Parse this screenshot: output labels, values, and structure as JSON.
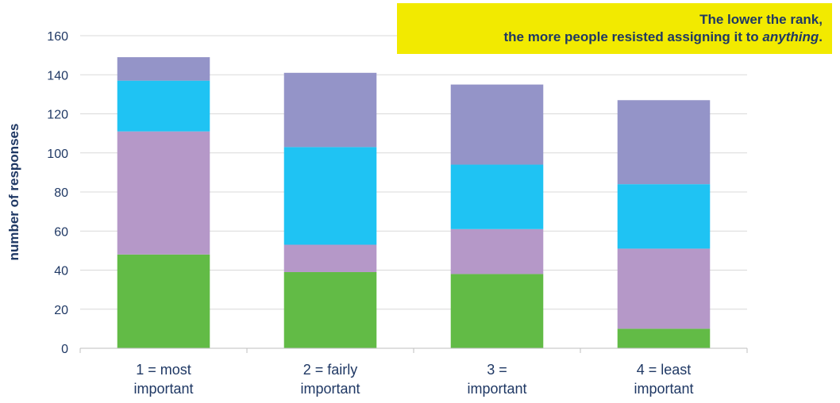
{
  "callout": {
    "line1": "The lower the rank,",
    "line2_prefix": "the more people resisted assigning it to ",
    "line2_emph": "anything",
    "line2_suffix": "."
  },
  "colors": {
    "green": "#62bb46",
    "mauve": "#b598c8",
    "cyan": "#1fc3f3",
    "lavender": "#9494c8",
    "axis_text": "#1f3864",
    "grid": "#d9d9d9"
  },
  "chart_data": {
    "type": "bar",
    "stacked": true,
    "categories": [
      [
        "1 = most",
        "important"
      ],
      [
        "2 = fairly",
        "important"
      ],
      [
        "3 =",
        "important"
      ],
      [
        "4 = least",
        "important"
      ]
    ],
    "series": [
      {
        "color": "#62bb46",
        "values": [
          48,
          39,
          38,
          10
        ]
      },
      {
        "color": "#b598c8",
        "values": [
          63,
          14,
          23,
          41
        ]
      },
      {
        "color": "#1fc3f3",
        "values": [
          26,
          50,
          33,
          33
        ]
      },
      {
        "color": "#9494c8",
        "values": [
          12,
          38,
          41,
          43
        ]
      }
    ],
    "ylabel": "number of responses",
    "ylim": [
      0,
      160
    ],
    "yticks": [
      0,
      20,
      40,
      60,
      80,
      100,
      120,
      140,
      160
    ],
    "grid": true,
    "legend": "none"
  }
}
